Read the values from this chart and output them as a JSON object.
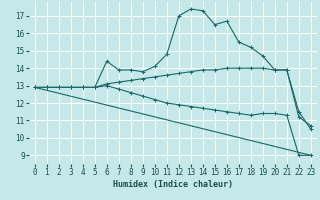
{
  "xlabel": "Humidex (Indice chaleur)",
  "background_color": "#c5e8e8",
  "grid_color": "#ffffff",
  "line_color": "#1a6868",
  "xlim": [
    -0.5,
    23.5
  ],
  "ylim": [
    8.5,
    17.8
  ],
  "xticks": [
    0,
    1,
    2,
    3,
    4,
    5,
    6,
    7,
    8,
    9,
    10,
    11,
    12,
    13,
    14,
    15,
    16,
    17,
    18,
    19,
    20,
    21,
    22,
    23
  ],
  "yticks": [
    9,
    10,
    11,
    12,
    13,
    14,
    15,
    16,
    17
  ],
  "curve1_x": [
    0,
    1,
    2,
    3,
    4,
    5,
    6,
    7,
    8,
    9,
    10,
    11,
    12,
    13,
    14,
    15,
    16,
    17,
    18,
    19,
    20,
    21,
    22,
    23
  ],
  "curve1_y": [
    12.9,
    12.9,
    12.9,
    12.9,
    12.9,
    12.9,
    14.4,
    13.9,
    13.9,
    13.8,
    14.1,
    14.8,
    17.0,
    17.4,
    17.3,
    16.5,
    16.7,
    15.5,
    15.2,
    14.7,
    13.9,
    13.9,
    11.2,
    10.7
  ],
  "curve2_x": [
    0,
    1,
    2,
    3,
    4,
    5,
    6,
    7,
    8,
    9,
    10,
    11,
    12,
    13,
    14,
    15,
    16,
    17,
    18,
    19,
    20,
    21,
    22,
    23
  ],
  "curve2_y": [
    12.9,
    12.9,
    12.9,
    12.9,
    12.9,
    12.9,
    13.1,
    13.2,
    13.3,
    13.4,
    13.5,
    13.6,
    13.7,
    13.8,
    13.9,
    13.9,
    14.0,
    14.0,
    14.0,
    14.0,
    13.9,
    13.9,
    11.5,
    10.5
  ],
  "curve3_x": [
    0,
    1,
    2,
    3,
    4,
    5,
    6,
    7,
    8,
    9,
    10,
    11,
    12,
    13,
    14,
    15,
    16,
    17,
    18,
    19,
    20,
    21,
    22,
    23
  ],
  "curve3_y": [
    12.9,
    12.9,
    12.9,
    12.9,
    12.9,
    12.9,
    13.0,
    12.8,
    12.6,
    12.4,
    12.2,
    12.0,
    11.9,
    11.8,
    11.7,
    11.6,
    11.5,
    11.4,
    11.3,
    11.4,
    11.4,
    11.3,
    9.0,
    9.0
  ],
  "curve4_x": [
    0,
    23
  ],
  "curve4_y": [
    12.9,
    9.0
  ]
}
